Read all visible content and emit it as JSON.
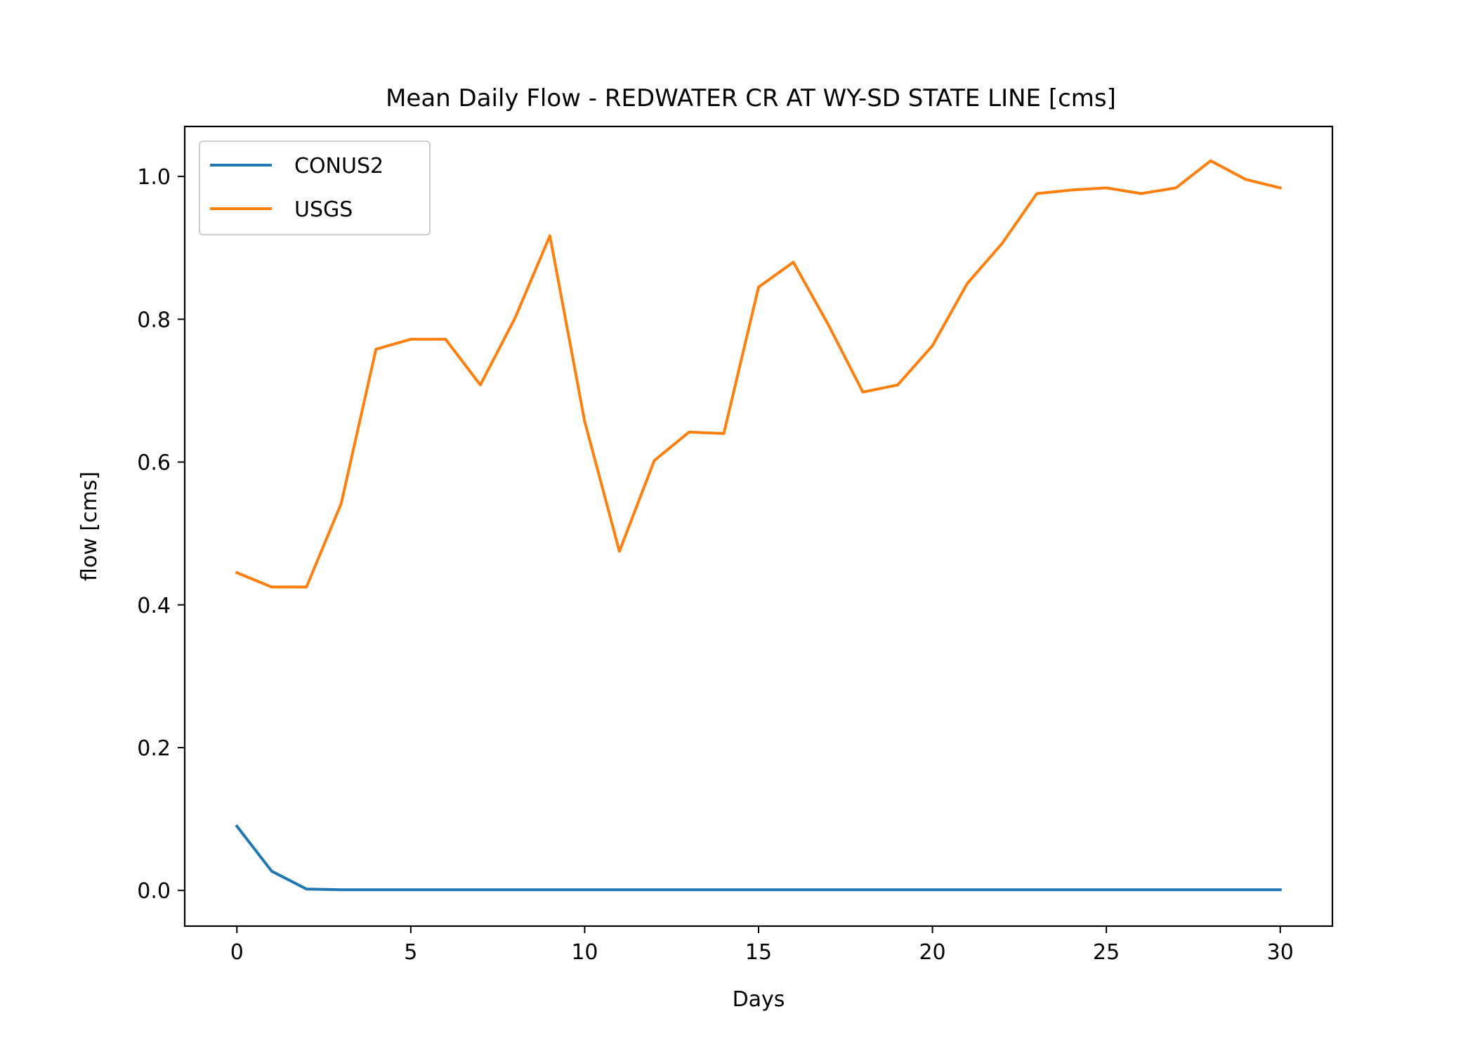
{
  "chart_data": {
    "type": "line",
    "title": "Mean Daily Flow - REDWATER CR AT WY-SD STATE LINE [cms]",
    "xlabel": "Days",
    "ylabel": "flow [cms]",
    "xlim": [
      -1.5,
      31.5
    ],
    "ylim": [
      -0.05,
      1.07
    ],
    "xticks": [
      0,
      5,
      10,
      15,
      20,
      25,
      30
    ],
    "xtick_labels": [
      "0",
      "5",
      "10",
      "15",
      "20",
      "25",
      "30"
    ],
    "yticks": [
      0.0,
      0.2,
      0.4,
      0.6,
      0.8,
      1.0
    ],
    "ytick_labels": [
      "0.0",
      "0.2",
      "0.4",
      "0.6",
      "0.8",
      "1.0"
    ],
    "grid": false,
    "legend_position": "top-left",
    "x": [
      0,
      1,
      2,
      3,
      4,
      5,
      6,
      7,
      8,
      9,
      10,
      11,
      12,
      13,
      14,
      15,
      16,
      17,
      18,
      19,
      20,
      21,
      22,
      23,
      24,
      25,
      26,
      27,
      28,
      29,
      30
    ],
    "series": [
      {
        "name": "CONUS2",
        "color": "#1f77b4",
        "values": [
          0.09,
          0.027,
          0.002,
          0.001,
          0.001,
          0.001,
          0.001,
          0.001,
          0.001,
          0.001,
          0.001,
          0.001,
          0.001,
          0.001,
          0.001,
          0.001,
          0.001,
          0.001,
          0.001,
          0.001,
          0.001,
          0.001,
          0.001,
          0.001,
          0.001,
          0.001,
          0.001,
          0.001,
          0.001,
          0.001,
          0.001
        ]
      },
      {
        "name": "USGS",
        "color": "#ff7f0e",
        "values": [
          0.445,
          0.425,
          0.425,
          0.542,
          0.758,
          0.772,
          0.772,
          0.708,
          0.802,
          0.917,
          0.657,
          0.475,
          0.602,
          0.642,
          0.64,
          0.845,
          0.88,
          0.793,
          0.698,
          0.708,
          0.763,
          0.85,
          0.906,
          0.976,
          0.981,
          0.984,
          0.976,
          0.984,
          1.022,
          0.996,
          0.984
        ]
      }
    ]
  }
}
